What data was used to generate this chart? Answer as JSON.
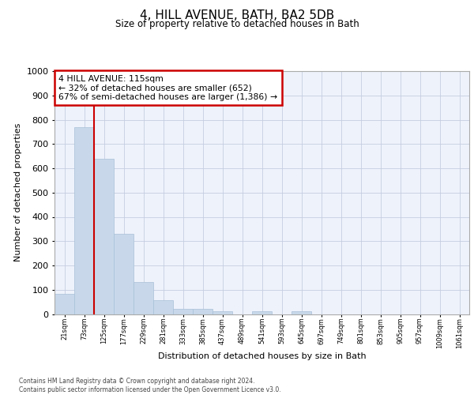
{
  "title": "4, HILL AVENUE, BATH, BA2 5DB",
  "subtitle": "Size of property relative to detached houses in Bath",
  "xlabel": "Distribution of detached houses by size in Bath",
  "ylabel": "Number of detached properties",
  "bar_color": "#c8d8ea",
  "bar_edgecolor": "#a8c0d8",
  "categories": [
    "21sqm",
    "73sqm",
    "125sqm",
    "177sqm",
    "229sqm",
    "281sqm",
    "333sqm",
    "385sqm",
    "437sqm",
    "489sqm",
    "541sqm",
    "593sqm",
    "645sqm",
    "697sqm",
    "749sqm",
    "801sqm",
    "853sqm",
    "905sqm",
    "957sqm",
    "1009sqm",
    "1061sqm"
  ],
  "values": [
    82,
    770,
    640,
    330,
    133,
    58,
    22,
    20,
    12,
    0,
    12,
    0,
    12,
    0,
    0,
    0,
    0,
    0,
    0,
    0,
    0
  ],
  "ylim": [
    0,
    1000
  ],
  "yticks": [
    0,
    100,
    200,
    300,
    400,
    500,
    600,
    700,
    800,
    900,
    1000
  ],
  "vline_color": "#cc0000",
  "vline_pos": 1.5,
  "annotation_text": "4 HILL AVENUE: 115sqm\n← 32% of detached houses are smaller (652)\n67% of semi-detached houses are larger (1,386) →",
  "annotation_box_edgecolor": "#cc0000",
  "footer_text": "Contains HM Land Registry data © Crown copyright and database right 2024.\nContains public sector information licensed under the Open Government Licence v3.0.",
  "background_color": "#eef2fb",
  "grid_color": "#c5cde0"
}
